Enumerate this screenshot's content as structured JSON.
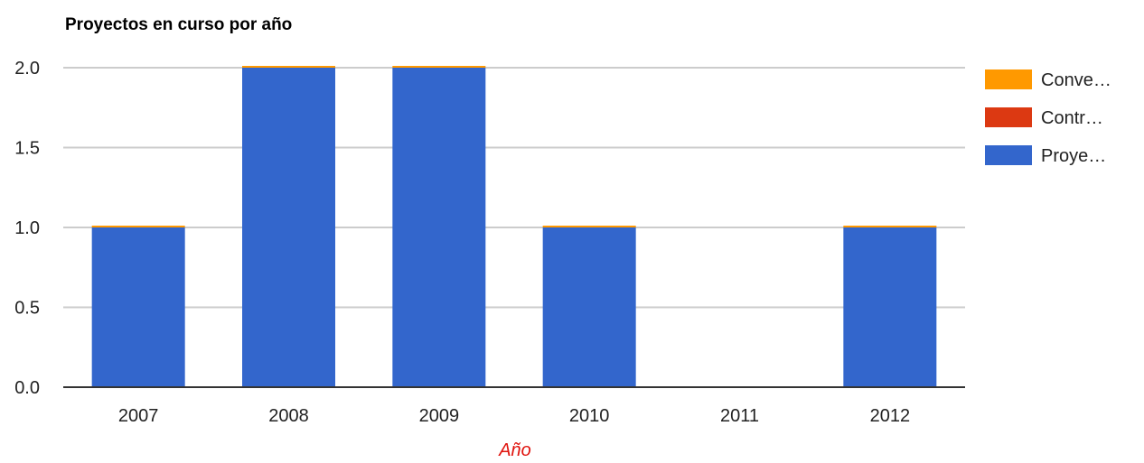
{
  "chart_data": {
    "type": "bar",
    "stacked": true,
    "title": "Proyectos en curso por año",
    "xlabel": "Año",
    "ylabel": "",
    "categories": [
      "2007",
      "2008",
      "2009",
      "2010",
      "2011",
      "2012"
    ],
    "series": [
      {
        "name": "Proye…",
        "color": "#3366cc",
        "values": [
          1,
          2,
          2,
          1,
          0,
          1
        ]
      },
      {
        "name": "Contr…",
        "color": "#dc3912",
        "values": [
          0,
          0,
          0,
          0,
          0,
          0
        ]
      },
      {
        "name": "Conve…",
        "color": "#ff9900",
        "values": [
          0,
          0,
          0,
          0,
          0,
          0
        ]
      }
    ],
    "legend_order": [
      "Conve…",
      "Contr…",
      "Proye…"
    ],
    "ylim": [
      0,
      2
    ],
    "yticks": [
      "0.0",
      "0.5",
      "1.0",
      "1.5",
      "2.0"
    ],
    "grid": true,
    "legend_position": "right",
    "gridline_color": "#cccccc",
    "axis_color": "#333333"
  }
}
